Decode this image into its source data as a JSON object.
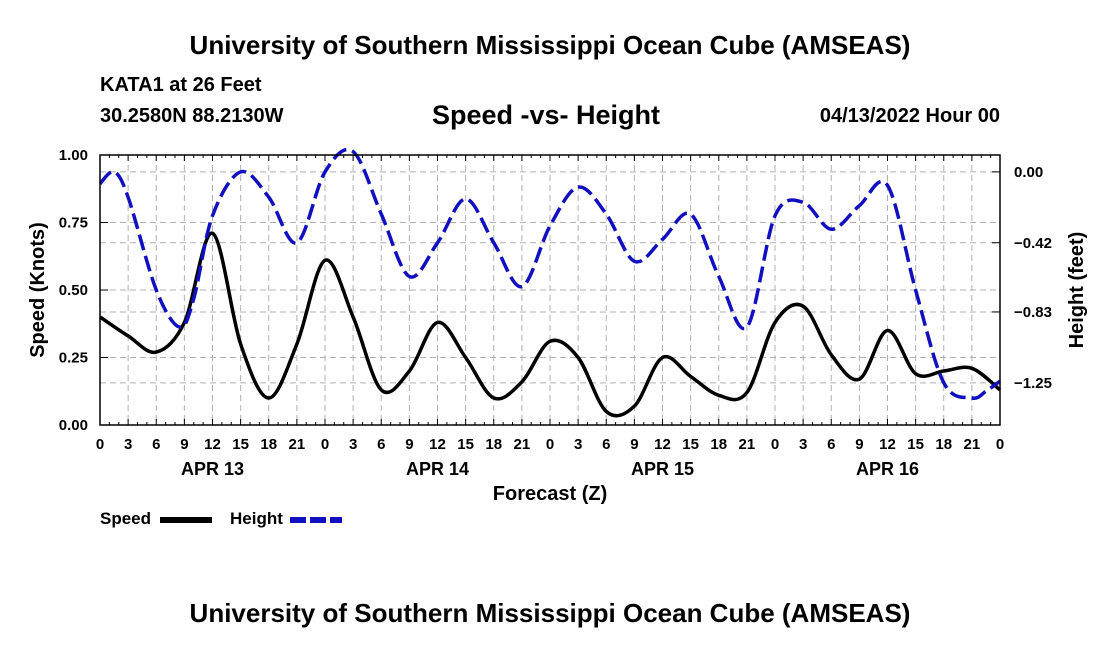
{
  "header": {
    "title": "University of Southern Mississippi Ocean Cube (AMSEAS)",
    "station": "KATA1 at 26 Feet",
    "coords": "30.2580N  88.2130W",
    "subtitle": "Speed -vs- Height",
    "datetime": "04/13/2022 Hour 00"
  },
  "footer": {
    "title": "University of Southern Mississippi Ocean Cube (AMSEAS)"
  },
  "legend": {
    "speed_label": "Speed",
    "height_label": "Height"
  },
  "colors": {
    "speed": "#000000",
    "height": "#1010c0",
    "grid": "#b0b0b0"
  },
  "chart_data": {
    "type": "line",
    "xlabel": "Forecast (Z)",
    "ylabel": "Speed (Knots)",
    "y2label": "Height (feet)",
    "xlim": [
      0,
      96
    ],
    "ylim": [
      0,
      1.0
    ],
    "y2lim": [
      -1.5,
      0.1
    ],
    "x_ticks": [
      0,
      3,
      6,
      9,
      12,
      15,
      18,
      21,
      24,
      27,
      30,
      33,
      36,
      39,
      42,
      45,
      48,
      51,
      54,
      57,
      60,
      63,
      66,
      69,
      72,
      75,
      78,
      81,
      84,
      87,
      90,
      93,
      96
    ],
    "x_tick_labels": [
      "0",
      "3",
      "6",
      "9",
      "12",
      "15",
      "18",
      "21",
      "0",
      "3",
      "6",
      "9",
      "12",
      "15",
      "18",
      "21",
      "0",
      "3",
      "6",
      "9",
      "12",
      "15",
      "18",
      "21",
      "0",
      "3",
      "6",
      "9",
      "12",
      "15",
      "18",
      "21",
      "0"
    ],
    "day_labels": [
      {
        "label": "APR 13",
        "x": 12
      },
      {
        "label": "APR 14",
        "x": 36
      },
      {
        "label": "APR 15",
        "x": 60
      },
      {
        "label": "APR 16",
        "x": 84
      }
    ],
    "y_ticks": [
      0,
      0.25,
      0.5,
      0.75,
      1.0
    ],
    "y_tick_labels": [
      "0.00",
      "0.25",
      "0.50",
      "0.75",
      "1.00"
    ],
    "y2_ticks": [
      0.0,
      -0.42,
      -0.83,
      -1.25
    ],
    "y2_tick_labels": [
      "0.00",
      "−0.42",
      "−0.83",
      "−1.25"
    ],
    "grid": true,
    "series": [
      {
        "name": "Speed",
        "axis": "left",
        "style": "solid",
        "x": [
          0,
          3,
          6,
          9,
          12,
          15,
          18,
          21,
          24,
          27,
          30,
          33,
          36,
          39,
          42,
          45,
          48,
          51,
          54,
          57,
          60,
          63,
          66,
          69,
          72,
          75,
          78,
          81,
          84,
          87,
          90,
          93,
          96
        ],
        "values": [
          0.4,
          0.33,
          0.27,
          0.38,
          0.71,
          0.3,
          0.1,
          0.3,
          0.61,
          0.4,
          0.13,
          0.2,
          0.38,
          0.25,
          0.1,
          0.16,
          0.31,
          0.25,
          0.05,
          0.07,
          0.25,
          0.18,
          0.11,
          0.12,
          0.38,
          0.44,
          0.26,
          0.17,
          0.35,
          0.19,
          0.2,
          0.21,
          0.13
        ]
      },
      {
        "name": "Height",
        "axis": "right",
        "style": "dashed",
        "x": [
          0,
          1.5,
          3,
          6,
          8.5,
          10,
          12,
          15,
          18,
          21,
          24,
          27,
          30,
          33,
          36,
          39,
          42,
          45,
          48,
          51,
          54,
          57,
          60,
          63,
          66,
          69,
          72,
          75,
          78,
          81,
          84,
          87,
          90,
          93,
          94.5,
          96
        ],
        "values": [
          -0.07,
          0.0,
          -0.15,
          -0.7,
          -0.92,
          -0.75,
          -0.26,
          0.0,
          -0.15,
          -0.42,
          0.0,
          0.12,
          -0.25,
          -0.62,
          -0.42,
          -0.16,
          -0.42,
          -0.68,
          -0.32,
          -0.09,
          -0.25,
          -0.53,
          -0.4,
          -0.25,
          -0.62,
          -0.92,
          -0.26,
          -0.18,
          -0.34,
          -0.2,
          -0.08,
          -0.7,
          -1.25,
          -1.34,
          -1.3,
          -1.24
        ]
      }
    ]
  }
}
